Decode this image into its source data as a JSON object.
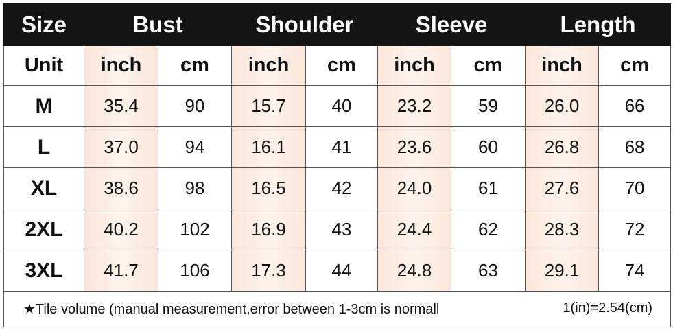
{
  "table": {
    "header": [
      "Size",
      "Bust",
      "Shoulder",
      "Sleeve",
      "Length"
    ],
    "units": [
      "Unit",
      "inch",
      "cm",
      "inch",
      "cm",
      "inch",
      "cm",
      "inch",
      "cm"
    ],
    "rows": [
      [
        "M",
        "35.4",
        "90",
        "15.7",
        "40",
        "23.2",
        "59",
        "26.0",
        "66"
      ],
      [
        "L",
        "37.0",
        "94",
        "16.1",
        "41",
        "23.6",
        "60",
        "26.8",
        "68"
      ],
      [
        "XL",
        "38.6",
        "98",
        "16.5",
        "42",
        "24.0",
        "61",
        "27.6",
        "70"
      ],
      [
        "2XL",
        "40.2",
        "102",
        "16.9",
        "43",
        "24.4",
        "62",
        "28.3",
        "72"
      ],
      [
        "3XL",
        "41.7",
        "106",
        "17.3",
        "44",
        "24.8",
        "63",
        "29.1",
        "74"
      ]
    ],
    "footer": {
      "note": "★Tile volume (manual measurement,error between 1-3cm is normall",
      "conversion": "1(in)=2.54(cm)"
    }
  }
}
